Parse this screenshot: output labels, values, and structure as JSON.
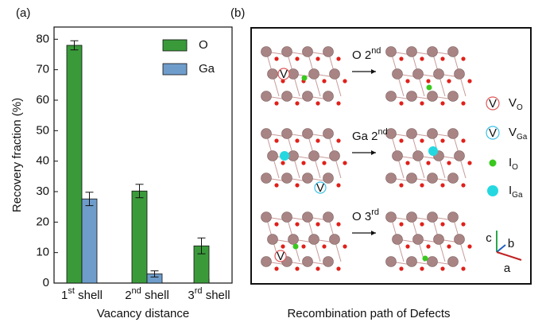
{
  "chart_data": {
    "type": "bar",
    "label": "(a)",
    "y_label": "Recovery fraction (%)",
    "x_label": "Vacancy distance",
    "categories": [
      "1st shell",
      "2nd shell",
      "3rd shell"
    ],
    "series": [
      {
        "name": "O",
        "color": "#3a9a3a",
        "values": [
          78,
          30.2,
          12.2
        ],
        "errors": [
          1.5,
          2.2,
          2.6
        ]
      },
      {
        "name": "Ga",
        "color": "#6f9dcb",
        "values": [
          27.6,
          3,
          null
        ],
        "errors": [
          2.2,
          1.0,
          null
        ]
      }
    ],
    "ylim": [
      0,
      84
    ],
    "yticks": [
      0,
      10,
      20,
      30,
      40,
      50,
      60,
      70,
      80
    ],
    "legend": "upper right"
  },
  "diagram": {
    "label": "(b)",
    "caption": "Recombination path of Defects",
    "steps": [
      "O 2nd",
      "Ga 2nd",
      "O 3rd"
    ],
    "legend": [
      {
        "marker_text": "V",
        "label": "V",
        "subscript": "O",
        "color": "#e0595b"
      },
      {
        "marker_text": "V",
        "label": "V",
        "subscript": "Ga",
        "color": "#3cc0e6"
      },
      {
        "label": "I",
        "subscript": "O",
        "color": "#39c81e"
      },
      {
        "label": "I",
        "subscript": "Ga",
        "color": "#25d8e0"
      }
    ],
    "axes": [
      "c",
      "b",
      "a"
    ]
  }
}
